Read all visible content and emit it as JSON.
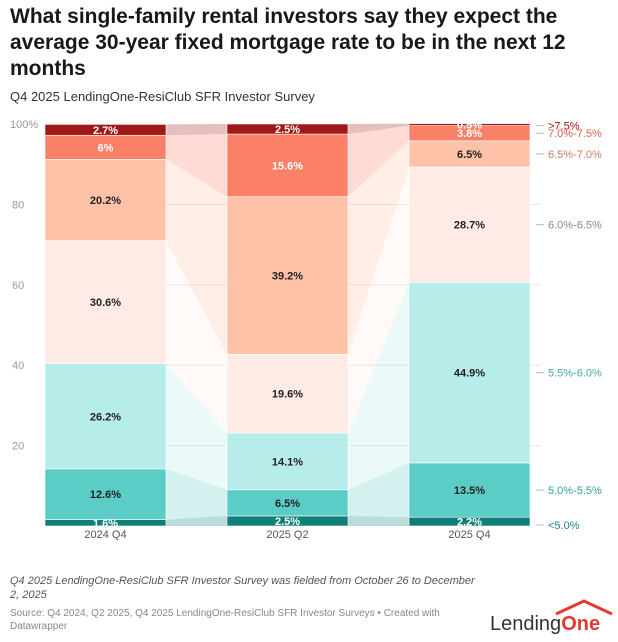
{
  "title": "What single-family rental investors say they expect the average 30-year fixed mortgage rate to be in the next 12 months",
  "subtitle": "Q4 2025 LendingOne-ResiClub SFR Investor Survey",
  "note": "Q4 2025 LendingOne-ResiClub SFR Investor Survey was fielded from October 26 to December 2, 2025",
  "source": "Source: Q4 2024, Q2 2025, Q4 2025 LendingOne-ResiClub SFR Investor Surveys • Created with Datawrapper",
  "logo": {
    "part1": "Lending",
    "part2": "One"
  },
  "chart_data": {
    "type": "bar",
    "stacked": true,
    "categories": [
      "2024 Q4",
      "2025 Q2",
      "2025 Q4"
    ],
    "ylim": [
      0,
      100
    ],
    "yticks": [
      20,
      40,
      60,
      80
    ],
    "ytick_top_label": "100%",
    "series": [
      {
        "name": "<5.0%",
        "color": "#0e8079",
        "label_color": "#ffffff",
        "legend_color": "#1a8c85",
        "values": [
          1.6,
          2.5,
          2.2
        ],
        "labels": [
          "1.6%",
          "2.5%",
          "2.2%"
        ]
      },
      {
        "name": "5.0%-5.5%",
        "color": "#5cccc7",
        "label_color": "#222222",
        "legend_color": "#2ea59e",
        "values": [
          12.6,
          6.5,
          13.5
        ],
        "labels": [
          "12.6%",
          "6.5%",
          "13.5%"
        ]
      },
      {
        "name": "5.5%-6.0%",
        "color": "#b6ecea",
        "label_color": "#222222",
        "legend_color": "#4aa9a3",
        "values": [
          26.2,
          14.1,
          44.9
        ],
        "labels": [
          "26.2%",
          "14.1%",
          "44.9%"
        ]
      },
      {
        "name": "6.0%-6.5%",
        "color": "#feebe5",
        "label_color": "#222222",
        "legend_color": "#888888",
        "values": [
          30.6,
          19.6,
          28.7
        ],
        "labels": [
          "30.6%",
          "19.6%",
          "28.7%"
        ]
      },
      {
        "name": "6.5%-7.0%",
        "color": "#fdc2a7",
        "label_color": "#222222",
        "legend_color": "#c97e63",
        "values": [
          20.2,
          39.2,
          6.5
        ],
        "labels": [
          "20.2%",
          "39.2%",
          "6.5%"
        ]
      },
      {
        "name": "7.0%-7.5%",
        "color": "#fb8068",
        "label_color": "#ffffff",
        "legend_color": "#e0604a",
        "values": [
          6.0,
          15.6,
          3.8
        ],
        "labels": [
          "6%",
          "15.6%",
          "3.8%"
        ]
      },
      {
        "name": ">7.5%",
        "color": "#a01717",
        "label_color": "#ffffff",
        "legend_color": "#a01717",
        "values": [
          2.7,
          2.5,
          0.5
        ],
        "labels": [
          "2.7%",
          "2.5%",
          "0.5%"
        ]
      }
    ]
  }
}
